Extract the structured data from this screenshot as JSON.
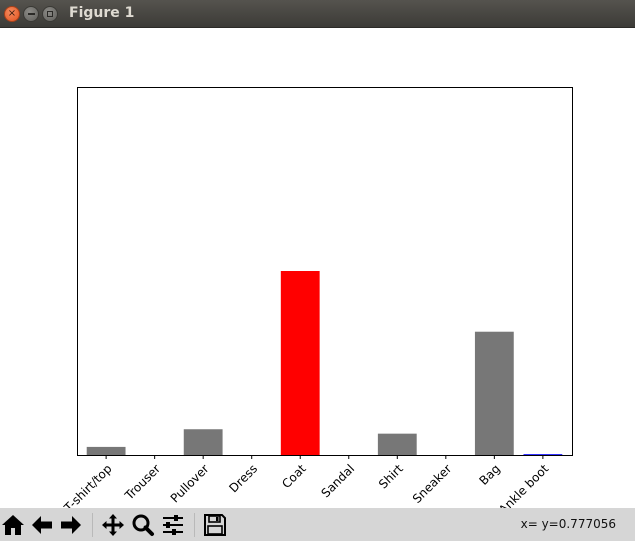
{
  "window": {
    "title": "Figure 1",
    "close_glyph": "×"
  },
  "toolbar": {
    "buttons": [
      {
        "name": "home-icon"
      },
      {
        "name": "back-arrow-icon"
      },
      {
        "name": "forward-arrow-icon"
      },
      {
        "name": "pan-icon"
      },
      {
        "name": "zoom-icon"
      },
      {
        "name": "configure-subplots-icon"
      },
      {
        "name": "save-icon"
      }
    ],
    "coords": "x= y=0.777056"
  },
  "chart_data": {
    "type": "bar",
    "categories": [
      "T-shirt/top",
      "Trouser",
      "Pullover",
      "Dress",
      "Coat",
      "Sandal",
      "Shirt",
      "Sneaker",
      "Bag",
      "Ankle boot"
    ],
    "values": [
      0.022,
      0.0,
      0.07,
      0.0,
      0.5,
      0.0,
      0.058,
      0.0,
      0.335,
      0.001
    ],
    "colors": [
      "#777777",
      "#777777",
      "#777777",
      "#777777",
      "#ff0000",
      "#777777",
      "#777777",
      "#777777",
      "#777777",
      "#0000ff"
    ],
    "ylim": [
      0,
      1
    ],
    "grid": false,
    "y_ticks_visible": false,
    "x_tick_rotation": 45
  }
}
